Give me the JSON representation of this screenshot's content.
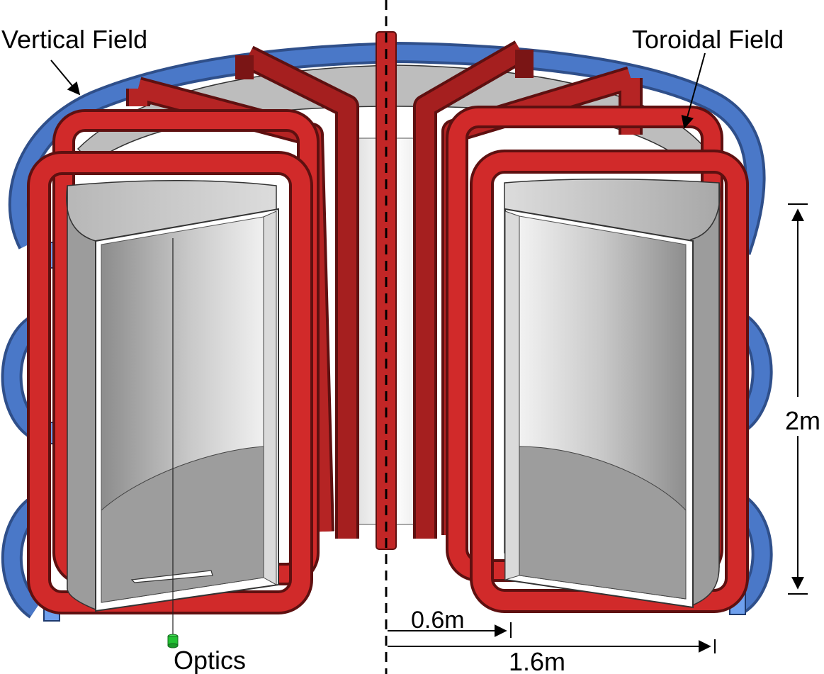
{
  "labels": {
    "vertical_field": "Vertical Field",
    "toroidal_field": "Toroidal Field",
    "optics": "Optics",
    "height_dim": "2m",
    "inner_radius_dim": "0.6m",
    "outer_radius_dim": "1.6m"
  },
  "colors": {
    "tf_coil": "#d12a2a",
    "tf_coil_dark": "#8a1818",
    "vf_coil": "#4a78c8",
    "vf_coil_light": "#6fa0ee",
    "vessel": "#c8c8c8",
    "vessel_dark": "#a6a6a6",
    "optics": "#22c233"
  }
}
